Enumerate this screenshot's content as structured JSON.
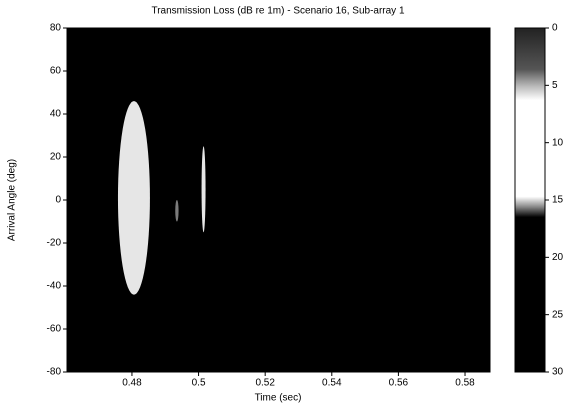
{
  "chart_data": {
    "type": "heatmap",
    "title": "Transmission Loss (dB re 1m) - Scenario 16, Sub-array 1",
    "x_label": "Time (sec)",
    "y_label": "Arrival Angle (deg)",
    "xlim": [
      0.4605,
      0.5875
    ],
    "xticks": [
      0.48,
      0.5,
      0.52,
      0.54,
      0.56,
      0.58
    ],
    "ylim": [
      -80,
      80
    ],
    "yticks": [
      -80,
      -60,
      -40,
      -20,
      0,
      20,
      40,
      60,
      80
    ],
    "background_color": "#000000",
    "blobs": [
      {
        "x": [
          0.4758,
          0.4854
        ],
        "y": [
          -44,
          46
        ],
        "value": 10,
        "color": "#ffffff"
      },
      {
        "x": [
          0.493,
          0.494
        ],
        "y": [
          -10,
          0
        ],
        "value": 20,
        "color": "#888888"
      },
      {
        "x": [
          0.5009,
          0.5021
        ],
        "y": [
          -15,
          25
        ],
        "value": 10,
        "color": "#ffffff"
      }
    ],
    "clim": [
      0,
      30
    ],
    "cticks": [
      0,
      5,
      10,
      15,
      20,
      25,
      30
    ]
  }
}
